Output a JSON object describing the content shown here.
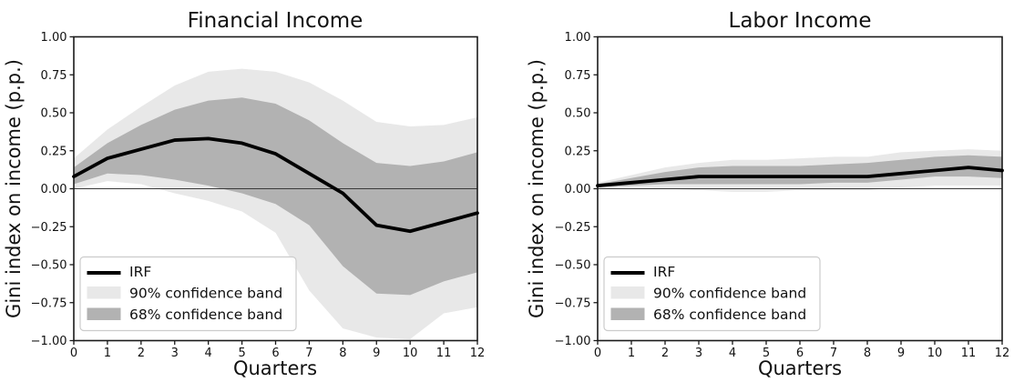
{
  "style": {
    "background": "#ffffff",
    "irf_color": "#000000",
    "band90_color": "#e8e8e8",
    "band68_color": "#b2b2b2",
    "zero_line_color": "#3a3a3a",
    "axis_color": "#1a1a1a",
    "tick_label_color": "#111111",
    "legend_border_color": "#cccccc",
    "legend_bg": "rgba(255,255,255,0.85)"
  },
  "chart_data": [
    {
      "type": "area",
      "title": "Financial Income",
      "xlabel": "Quarters",
      "ylabel": "Gini index on income (p.p.)",
      "x": [
        0,
        1,
        2,
        3,
        4,
        5,
        6,
        7,
        8,
        9,
        10,
        11,
        12
      ],
      "xlim": [
        0,
        12
      ],
      "ylim": [
        -1.0,
        1.0
      ],
      "grid": false,
      "legend_position": "lower left",
      "x_ticks": [
        0,
        1,
        2,
        3,
        4,
        5,
        6,
        7,
        8,
        9,
        10,
        11,
        12
      ],
      "x_tick_labels": [
        "0",
        "1",
        "2",
        "3",
        "4",
        "5",
        "6",
        "7",
        "8",
        "9",
        "10",
        "11",
        "12"
      ],
      "y_ticks": [
        1.0,
        0.75,
        0.5,
        0.25,
        0.0,
        -0.25,
        -0.5,
        -0.75,
        -1.0
      ],
      "y_tick_labels": [
        "1.00",
        "0.75",
        "0.50",
        "0.25",
        "0.00",
        "−0.25",
        "−0.50",
        "−0.75",
        "−1.00"
      ],
      "series": [
        {
          "name": "IRF",
          "role": "line",
          "values": [
            0.08,
            0.2,
            0.26,
            0.32,
            0.33,
            0.3,
            0.23,
            0.1,
            -0.03,
            -0.24,
            -0.28,
            -0.22,
            -0.16
          ]
        },
        {
          "name": "90% confidence band",
          "role": "band",
          "level": "90",
          "upper": [
            0.2,
            0.39,
            0.54,
            0.68,
            0.77,
            0.79,
            0.77,
            0.7,
            0.58,
            0.44,
            0.41,
            0.42,
            0.47
          ],
          "lower": [
            0.0,
            0.05,
            0.03,
            -0.03,
            -0.08,
            -0.15,
            -0.29,
            -0.67,
            -0.92,
            -0.98,
            -0.99,
            -0.82,
            -0.78
          ]
        },
        {
          "name": "68% confidence band",
          "role": "band",
          "level": "68",
          "upper": [
            0.14,
            0.3,
            0.42,
            0.52,
            0.58,
            0.6,
            0.56,
            0.45,
            0.3,
            0.17,
            0.15,
            0.18,
            0.24
          ],
          "lower": [
            0.03,
            0.1,
            0.09,
            0.06,
            0.02,
            -0.03,
            -0.1,
            -0.24,
            -0.51,
            -0.69,
            -0.7,
            -0.61,
            -0.55
          ]
        }
      ],
      "legend": [
        "IRF",
        "90% confidence band",
        "68% confidence band"
      ]
    },
    {
      "type": "area",
      "title": "Labor Income",
      "xlabel": "Quarters",
      "ylabel": "Gini index on income (p.p.)",
      "x": [
        0,
        1,
        2,
        3,
        4,
        5,
        6,
        7,
        8,
        9,
        10,
        11,
        12
      ],
      "xlim": [
        0,
        12
      ],
      "ylim": [
        -1.0,
        1.0
      ],
      "grid": false,
      "legend_position": "lower left",
      "x_ticks": [
        0,
        1,
        2,
        3,
        4,
        5,
        6,
        7,
        8,
        9,
        10,
        11,
        12
      ],
      "x_tick_labels": [
        "0",
        "1",
        "2",
        "3",
        "4",
        "5",
        "6",
        "7",
        "8",
        "9",
        "10",
        "11",
        "12"
      ],
      "y_ticks": [
        1.0,
        0.75,
        0.5,
        0.25,
        0.0,
        -0.25,
        -0.5,
        -0.75,
        -1.0
      ],
      "y_tick_labels": [
        "1.00",
        "0.75",
        "0.50",
        "0.25",
        "0.00",
        "−0.25",
        "−0.50",
        "−0.75",
        "−1.00"
      ],
      "series": [
        {
          "name": "IRF",
          "role": "line",
          "values": [
            0.02,
            0.04,
            0.06,
            0.08,
            0.08,
            0.08,
            0.08,
            0.08,
            0.08,
            0.1,
            0.12,
            0.14,
            0.12
          ]
        },
        {
          "name": "90% confidence band",
          "role": "band",
          "level": "90",
          "upper": [
            0.04,
            0.09,
            0.14,
            0.17,
            0.19,
            0.19,
            0.2,
            0.21,
            0.21,
            0.24,
            0.25,
            0.26,
            0.25
          ],
          "lower": [
            0.0,
            0.01,
            0.0,
            -0.01,
            -0.02,
            -0.02,
            -0.01,
            -0.01,
            -0.01,
            0.01,
            0.02,
            0.02,
            0.02
          ]
        },
        {
          "name": "68% confidence band",
          "role": "band",
          "level": "68",
          "upper": [
            0.03,
            0.07,
            0.11,
            0.14,
            0.15,
            0.15,
            0.15,
            0.16,
            0.17,
            0.19,
            0.21,
            0.22,
            0.21
          ],
          "lower": [
            0.01,
            0.02,
            0.03,
            0.03,
            0.03,
            0.03,
            0.03,
            0.04,
            0.04,
            0.06,
            0.08,
            0.08,
            0.07
          ]
        }
      ],
      "legend": [
        "IRF",
        "90% confidence band",
        "68% confidence band"
      ]
    }
  ]
}
